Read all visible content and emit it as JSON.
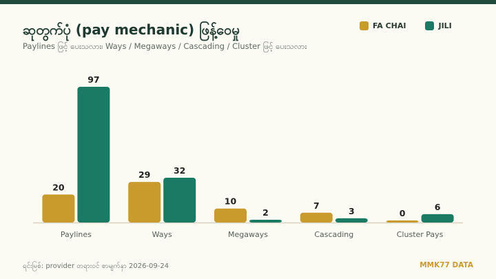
{
  "header": {
    "title": "ဆုတွက်ပုံ (pay mechanic) ဖြန့်ဝေမှု",
    "subtitle": "Paylines ဖြင့် ပေးသလား၊ Ways / Megaways / Cascading / Cluster ဖြင့် ပေးသလား"
  },
  "legend": [
    {
      "label": "FA CHAI",
      "color": "#c99a2c"
    },
    {
      "label": "JILI",
      "color": "#1b7a63"
    }
  ],
  "chart_data": {
    "type": "bar",
    "title": "ဆုတွက်ပုံ (pay mechanic) ဖြန့်ဝေမှု",
    "subtitle": "Paylines ဖြင့် ပေးသလား၊ Ways / Megaways / Cascading / Cluster ဖြင့် ပေးသလား",
    "categories": [
      "Paylines",
      "Ways",
      "Megaways",
      "Cascading",
      "Cluster Pays"
    ],
    "series": [
      {
        "name": "FA CHAI",
        "values": [
          20,
          29,
          10,
          7,
          0
        ],
        "color": "#c99a2c"
      },
      {
        "name": "JILI",
        "values": [
          97,
          32,
          2,
          3,
          6
        ],
        "color": "#1b7a63"
      }
    ],
    "ylim": [
      0,
      97
    ],
    "grid": false,
    "legend_position": "top-right",
    "data_labels": true
  },
  "footer": {
    "source": "ရင်းမြစ်: provider တရားဝင် စာမျက်နှာ 2026-09-24",
    "brand": "MMK77 DATA"
  }
}
